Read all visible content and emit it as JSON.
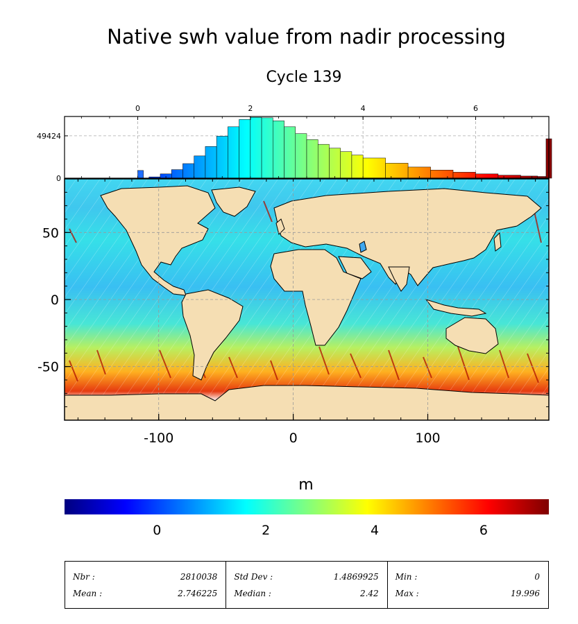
{
  "figure": {
    "title": "Native swh value from nadir processing",
    "subtitle": "Cycle 139"
  },
  "chart_data": [
    {
      "type": "bar",
      "name": "histogram",
      "bin_width": 0.1,
      "x_ticks": [
        0,
        2,
        4,
        6
      ],
      "y_ticks": [
        0,
        49424
      ],
      "xlim": [
        -1.3,
        7.3
      ],
      "ylim": [
        0,
        72000
      ],
      "grid": true,
      "bins": [
        {
          "x": 0.0,
          "y": 9000
        },
        {
          "x": 0.2,
          "y": 1500
        },
        {
          "x": 0.4,
          "y": 5000
        },
        {
          "x": 0.6,
          "y": 10000
        },
        {
          "x": 0.8,
          "y": 17000
        },
        {
          "x": 1.0,
          "y": 26000
        },
        {
          "x": 1.2,
          "y": 37000
        },
        {
          "x": 1.4,
          "y": 49000
        },
        {
          "x": 1.6,
          "y": 60000
        },
        {
          "x": 1.8,
          "y": 68500
        },
        {
          "x": 2.0,
          "y": 71000
        },
        {
          "x": 2.2,
          "y": 70500
        },
        {
          "x": 2.4,
          "y": 67000
        },
        {
          "x": 2.6,
          "y": 60000
        },
        {
          "x": 2.8,
          "y": 52000
        },
        {
          "x": 3.0,
          "y": 45000
        },
        {
          "x": 3.2,
          "y": 39500
        },
        {
          "x": 3.4,
          "y": 35000
        },
        {
          "x": 3.6,
          "y": 31000
        },
        {
          "x": 3.8,
          "y": 27000
        },
        {
          "x": 4.0,
          "y": 23500
        },
        {
          "x": 4.4,
          "y": 17500
        },
        {
          "x": 4.8,
          "y": 13000
        },
        {
          "x": 5.2,
          "y": 9500
        },
        {
          "x": 5.6,
          "y": 7000
        },
        {
          "x": 6.0,
          "y": 5000
        },
        {
          "x": 6.4,
          "y": 3500
        },
        {
          "x": 6.8,
          "y": 2500
        },
        {
          "x": 7.1,
          "y": 2000
        },
        {
          "x": 7.25,
          "y": 46000
        }
      ]
    },
    {
      "type": "heatmap",
      "name": "map",
      "xlim": [
        -170,
        190
      ],
      "ylim": [
        -90,
        90
      ],
      "x_ticks": [
        -100,
        0,
        100
      ],
      "y_ticks": [
        -50,
        0,
        50
      ],
      "grid": true,
      "colorbar": {
        "label": "m",
        "ticks": [
          0,
          2,
          4,
          6
        ],
        "range": [
          -1.7,
          7.2
        ]
      }
    }
  ],
  "colors": {
    "land": "#f5deb3",
    "ocean_low": "#33a3ff",
    "ocean_mid": "#3fe0e0",
    "high": "#d02000",
    "very_high": "#800000"
  },
  "stats": {
    "nbr_label": "Nbr :",
    "nbr_value": "2810038",
    "mean_label": "Mean :",
    "mean_value": "2.746225",
    "std_label": "Std Dev :",
    "std_value": "1.4869925",
    "median_label": "Median :",
    "median_value": "2.42",
    "min_label": "Min :",
    "min_value": "0",
    "max_label": "Max :",
    "max_value": "19.996"
  }
}
